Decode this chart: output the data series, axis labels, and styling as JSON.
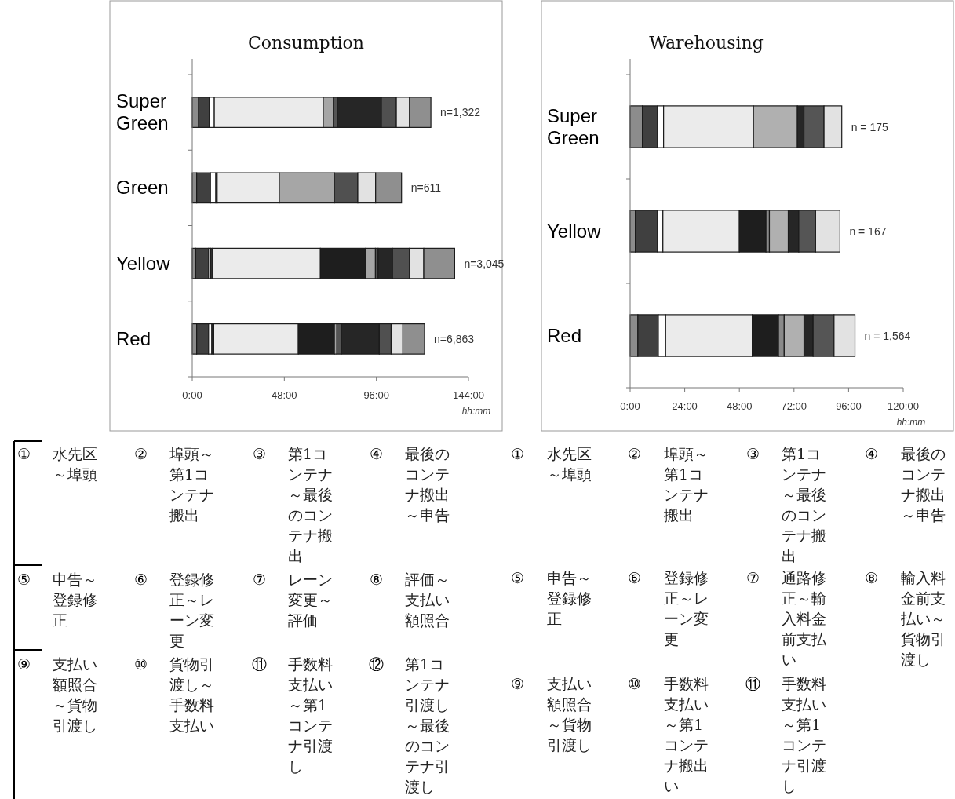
{
  "chart_data": [
    {
      "type": "bar",
      "orientation": "horizontal",
      "stacked": true,
      "title": "Consumption",
      "xlabel": "hh:mm",
      "categories": [
        "Super Green",
        "Green",
        "Yellow",
        "Red"
      ],
      "xlim": [
        0,
        144
      ],
      "xticks": [
        {
          "value": 0,
          "label": "0:00"
        },
        {
          "value": 48,
          "label": "48:00"
        },
        {
          "value": 96,
          "label": "96:00"
        },
        {
          "value": 144,
          "label": "144:00"
        }
      ],
      "series": [
        {
          "color": "#8c8c8c",
          "values": [
            3.3,
            2.3,
            1.8,
            2.3
          ]
        },
        {
          "color": "#404040",
          "values": [
            5.7,
            7.2,
            6.7,
            6.2
          ]
        },
        {
          "color": "#ffffff",
          "values": [
            2.5,
            2.8,
            1.0,
            1.7
          ]
        },
        {
          "color": "#303030",
          "values": [
            0,
            0.7,
            1.1,
            1.0
          ]
        },
        {
          "color": "#ebebeb",
          "values": [
            56.8,
            32.4,
            56.2,
            44.1
          ]
        },
        {
          "color": "#1e1e1e",
          "values": [
            0,
            0,
            23.6,
            18.8
          ]
        },
        {
          "color": "#a6a6a6",
          "values": [
            5.3,
            28.7,
            5.1,
            1.3
          ]
        },
        {
          "color": "#555555",
          "values": [
            2.0,
            0,
            1.4,
            2.3
          ]
        },
        {
          "color": "#262626",
          "values": [
            23.0,
            0,
            7.5,
            19.8
          ]
        },
        {
          "color": "#505050",
          "values": [
            7.8,
            12.2,
            8.8,
            6.2
          ]
        },
        {
          "color": "#e2e2e2",
          "values": [
            6.9,
            9.3,
            7.5,
            6.1
          ]
        },
        {
          "color": "#8f8f8f",
          "values": [
            11.1,
            13.5,
            16.1,
            11.3
          ]
        }
      ],
      "annotations": [
        {
          "text": "n=1,322",
          "x": 124.4,
          "y": "Super Green"
        },
        {
          "text": "n=611",
          "x": 109.1,
          "y": "Green"
        },
        {
          "text": "n=3,045",
          "x": 136.8,
          "y": "Yellow"
        },
        {
          "text": "n=6,863",
          "x": 121.1,
          "y": "Red"
        },
        "① 水先区～埠頭",
        "② 埠頭～第1コンテナ搬出",
        "③ 第1コンテナ～最後のコンテナ搬出",
        "④ 最後のコンテナ搬出～申告",
        "⑤ 申告～登録修正",
        "⑥ 登録修正～レーン変更",
        "⑦ レーン変更～評価",
        "⑧ 評価～支払い額照合",
        "⑨ 支払い額照合～貨物引渡し",
        "⑩ 貨物引渡し～手数料支払い",
        "⑪ 手数料支払い～第1コンテナ引渡し",
        "⑫ 第1コンテナ引渡し～最後のコンテナ引渡し"
      ]
    },
    {
      "type": "bar",
      "orientation": "horizontal",
      "stacked": true,
      "title": "Warehousing",
      "xlabel": "hh:mm",
      "categories": [
        "Super Green",
        "Yellow",
        "Red"
      ],
      "xlim": [
        0,
        120
      ],
      "xticks": [
        {
          "value": 0,
          "label": "0:00"
        },
        {
          "value": 24,
          "label": "24:00"
        },
        {
          "value": 48,
          "label": "48:00"
        },
        {
          "value": 72,
          "label": "72:00"
        },
        {
          "value": 96,
          "label": "96:00"
        },
        {
          "value": 120,
          "label": "120:00"
        }
      ],
      "series": [
        {
          "color": "#8c8c8c",
          "values": [
            5.4,
            2.3,
            3.4
          ]
        },
        {
          "color": "#404040",
          "values": [
            6.7,
            9.8,
            9.0
          ]
        },
        {
          "color": "#ffffff",
          "values": [
            2.6,
            2.3,
            3.2
          ]
        },
        {
          "color": "#ebebeb",
          "values": [
            39.5,
            33.6,
            38.1
          ]
        },
        {
          "color": "#1e1e1e",
          "values": [
            0,
            11.7,
            11.5
          ]
        },
        {
          "color": "#8a8a8a",
          "values": [
            0,
            1.5,
            2.5
          ]
        },
        {
          "color": "#b0b0b0",
          "values": [
            19.3,
            8.3,
            8.7
          ]
        },
        {
          "color": "#262626",
          "values": [
            2.9,
            4.6,
            4.0
          ]
        },
        {
          "color": "#555555",
          "values": [
            8.8,
            7.4,
            9.2
          ]
        },
        {
          "color": "#e2e2e2",
          "values": [
            7.8,
            10.7,
            9.2
          ]
        }
      ],
      "annotations": [
        {
          "text": "n = 175",
          "x": 93.0,
          "y": "Super Green"
        },
        {
          "text": "n = 167",
          "x": 92.2,
          "y": "Yellow"
        },
        {
          "text": "n = 1,564",
          "x": 98.8,
          "y": "Red"
        },
        "① 水先区～埠頭",
        "② 埠頭～第1コンテナ搬出",
        "③ 第1コンテナ～最後のコンテナ搬出",
        "④ 最後のコンテナ搬出～申告",
        "⑤ 申告～登録修正",
        "⑥ 登録修正～レーン変更",
        "⑦ 通路修正～輸入料金前支払い",
        "⑧ 輸入料金前支払い～貨物引渡し",
        "⑨ 支払い額照合～貨物引渡し",
        "⑩ 手数料支払い～第1コンテナ搬出い",
        "⑪ 手数料支払い～第1コンテナ引渡し"
      ]
    }
  ]
}
